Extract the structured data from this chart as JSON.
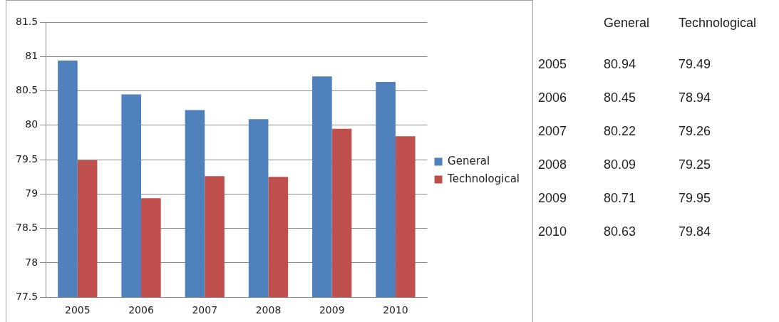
{
  "chart_data": [
    {
      "type": "bar",
      "categories": [
        "2005",
        "2006",
        "2007",
        "2008",
        "2009",
        "2010"
      ],
      "series": [
        {
          "name": "General",
          "color": "#4f81bd",
          "values": [
            80.94,
            80.45,
            80.22,
            80.09,
            80.71,
            80.63
          ]
        },
        {
          "name": "Technological",
          "color": "#c0504d",
          "values": [
            79.49,
            78.94,
            79.26,
            79.25,
            79.95,
            79.84
          ]
        }
      ],
      "ylim": [
        77.5,
        81.5
      ],
      "yticks": [
        77.5,
        78,
        78.5,
        79,
        79.5,
        80,
        80.5,
        81,
        81.5
      ],
      "grid": "y",
      "legend": "right"
    },
    {
      "type": "heatmap",
      "categories": [
        "General",
        "Technological"
      ],
      "y_categories": [
        "2005",
        "2006",
        "2007",
        "2008",
        "2009",
        "2010"
      ],
      "cells": [
        [
          80.94,
          79.49
        ],
        [
          80.45,
          78.94
        ],
        [
          80.22,
          79.26
        ],
        [
          80.09,
          79.25
        ],
        [
          80.71,
          79.95
        ],
        [
          80.63,
          79.84
        ]
      ],
      "data_labels": true
    }
  ]
}
